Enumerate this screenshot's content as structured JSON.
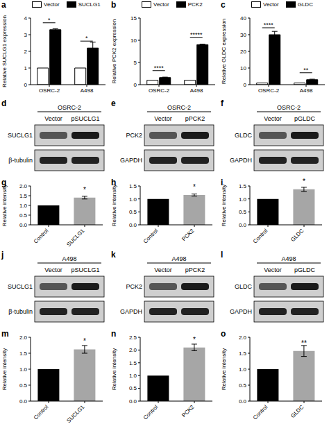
{
  "chart_data": [
    {
      "title": "a",
      "type": "bar",
      "y_label": "Relative SUCLG1 expression",
      "categories": [
        "OSRC-2",
        "A498"
      ],
      "series": [
        {
          "name": "Vector",
          "color": "#ffffff",
          "values": [
            1,
            1
          ],
          "errors": [
            0,
            0
          ]
        },
        {
          "name": "SUCLG1",
          "color": "#000000",
          "values": [
            3.3,
            2.2
          ],
          "errors": [
            0.06,
            0.35
          ]
        }
      ],
      "ylim": [
        0,
        4
      ],
      "yticks": [
        0,
        1,
        2,
        3,
        4
      ],
      "legend": "top",
      "annotations": [
        "*",
        "*"
      ]
    },
    {
      "title": "b",
      "type": "bar",
      "y_label": "Relative PCK2 expression",
      "categories": [
        "OSRC-2",
        "A498"
      ],
      "series": [
        {
          "name": "Vector",
          "color": "#ffffff",
          "values": [
            1,
            1
          ],
          "errors": [
            0,
            0
          ]
        },
        {
          "name": "PCK2",
          "color": "#000000",
          "values": [
            1.6,
            9
          ],
          "errors": [
            0.1,
            0.12
          ]
        }
      ],
      "ylim": [
        0,
        15
      ],
      "yticks": [
        0,
        5,
        10,
        15
      ],
      "legend": "top",
      "annotations": [
        "****",
        "*****"
      ]
    },
    {
      "title": "c",
      "type": "bar",
      "y_label": "Relative GLDC expression",
      "categories": [
        "OSRC-2",
        "A498"
      ],
      "series": [
        {
          "name": "Vector",
          "color": "#ffffff",
          "values": [
            1,
            1
          ],
          "errors": [
            0,
            0
          ]
        },
        {
          "name": "GLDC",
          "color": "#000000",
          "values": [
            30,
            3
          ],
          "errors": [
            2,
            0.3
          ]
        }
      ],
      "ylim": [
        0,
        40
      ],
      "yticks": [
        0,
        10,
        20,
        30,
        40
      ],
      "legend": "top",
      "annotations": [
        "****",
        "**"
      ]
    },
    {
      "title": "g",
      "type": "bar",
      "y_label": "Relative intensity",
      "categories": [
        "Control",
        "SUCLG1"
      ],
      "values": [
        1,
        1.4
      ],
      "errors": [
        0,
        0.07
      ],
      "colors": [
        "#000000",
        "#a6a6a6"
      ],
      "ylim": [
        0,
        2
      ],
      "yticks": [
        {
          "value": 0,
          "label": "0.0"
        },
        {
          "value": 0.5,
          "label": "0.5"
        },
        {
          "value": 1,
          "label": "1.0"
        },
        {
          "value": 1.5,
          "label": "1.5"
        },
        {
          "value": 2,
          "label": "2.0"
        }
      ],
      "annotations": [
        null,
        "*"
      ]
    },
    {
      "title": "h",
      "type": "bar",
      "y_label": "Relative intensity",
      "categories": [
        "Control",
        "PCK2"
      ],
      "values": [
        1,
        1.15
      ],
      "errors": [
        0,
        0.04
      ],
      "colors": [
        "#000000",
        "#a6a6a6"
      ],
      "ylim": [
        0,
        1.5
      ],
      "yticks": [
        {
          "value": 0,
          "label": "0.0"
        },
        {
          "value": 0.5,
          "label": "0.5"
        },
        {
          "value": 1,
          "label": "1.0"
        },
        {
          "value": 1.5,
          "label": "1.5"
        }
      ],
      "annotations": [
        null,
        "*"
      ]
    },
    {
      "title": "i",
      "type": "bar",
      "y_label": "Relative intensity",
      "categories": [
        "Control",
        "GLDC"
      ],
      "values": [
        1,
        1.37
      ],
      "errors": [
        0,
        0.08
      ],
      "colors": [
        "#000000",
        "#a6a6a6"
      ],
      "ylim": [
        0,
        1.5
      ],
      "yticks": [
        {
          "value": 0,
          "label": "0.0"
        },
        {
          "value": 0.5,
          "label": "0.5"
        },
        {
          "value": 1,
          "label": "1.0"
        },
        {
          "value": 1.5,
          "label": "1.5"
        }
      ],
      "annotations": [
        null,
        "*"
      ]
    },
    {
      "title": "m",
      "type": "bar",
      "y_label": "Relative intensity",
      "categories": [
        "Control",
        "SUCLG1"
      ],
      "values": [
        1,
        1.62
      ],
      "errors": [
        0,
        0.12
      ],
      "colors": [
        "#000000",
        "#a6a6a6"
      ],
      "ylim": [
        0,
        2
      ],
      "yticks": [
        {
          "value": 0,
          "label": "0.0"
        },
        {
          "value": 0.5,
          "label": "0.5"
        },
        {
          "value": 1,
          "label": "1.0"
        },
        {
          "value": 1.5,
          "label": "1.5"
        },
        {
          "value": 2,
          "label": "2.0"
        }
      ],
      "annotations": [
        null,
        "*"
      ]
    },
    {
      "title": "n",
      "type": "bar",
      "y_label": "Relative intensity",
      "categories": [
        "Control",
        "PCK2"
      ],
      "values": [
        1,
        2.1
      ],
      "errors": [
        0,
        0.13
      ],
      "colors": [
        "#000000",
        "#a6a6a6"
      ],
      "ylim": [
        0,
        2.5
      ],
      "yticks": [
        {
          "value": 0,
          "label": "0.0"
        },
        {
          "value": 0.5,
          "label": "0.5"
        },
        {
          "value": 1,
          "label": "1.0"
        },
        {
          "value": 1.5,
          "label": "1.5"
        },
        {
          "value": 2,
          "label": "2.0"
        },
        {
          "value": 2.5,
          "label": "2.5"
        }
      ],
      "annotations": [
        null,
        "*"
      ]
    },
    {
      "title": "o",
      "type": "bar",
      "y_label": "Relative intensity",
      "categories": [
        "Control",
        "GLDC"
      ],
      "values": [
        1,
        1.57
      ],
      "errors": [
        0,
        0.17
      ],
      "colors": [
        "#000000",
        "#a6a6a6"
      ],
      "ylim": [
        0,
        2
      ],
      "yticks": [
        {
          "value": 0,
          "label": "0.0"
        },
        {
          "value": 0.5,
          "label": "0.5"
        },
        {
          "value": 1,
          "label": "1.0"
        },
        {
          "value": 1.5,
          "label": "1.5"
        },
        {
          "value": 2,
          "label": "2.0"
        }
      ],
      "annotations": [
        null,
        "**"
      ]
    }
  ],
  "blots": [
    {
      "title": "d",
      "cell_line": "OSRC-2",
      "lanes": [
        "Vector",
        "pSUCLG1"
      ],
      "bands": [
        "SUCLG1",
        "β-tubulin"
      ]
    },
    {
      "title": "e",
      "cell_line": "OSRC-2",
      "lanes": [
        "Vector",
        "pPCK2"
      ],
      "bands": [
        "PCK2",
        "GAPDH"
      ]
    },
    {
      "title": "f",
      "cell_line": "OSRC-2",
      "lanes": [
        "Vector",
        "pGLDC"
      ],
      "bands": [
        "GLDC",
        "GAPDH"
      ]
    },
    {
      "title": "j",
      "cell_line": "A498",
      "lanes": [
        "Vector",
        "pSUCLG1"
      ],
      "bands": [
        "SUCLG1",
        "β-tubulin"
      ]
    },
    {
      "title": "k",
      "cell_line": "A498",
      "lanes": [
        "Vector",
        "pPCK2"
      ],
      "bands": [
        "PCK2",
        "GAPDH"
      ]
    },
    {
      "title": "l",
      "cell_line": "A498",
      "lanes": [
        "Vector",
        "pGLDC"
      ],
      "bands": [
        "GLDC",
        "GAPDH"
      ]
    }
  ]
}
